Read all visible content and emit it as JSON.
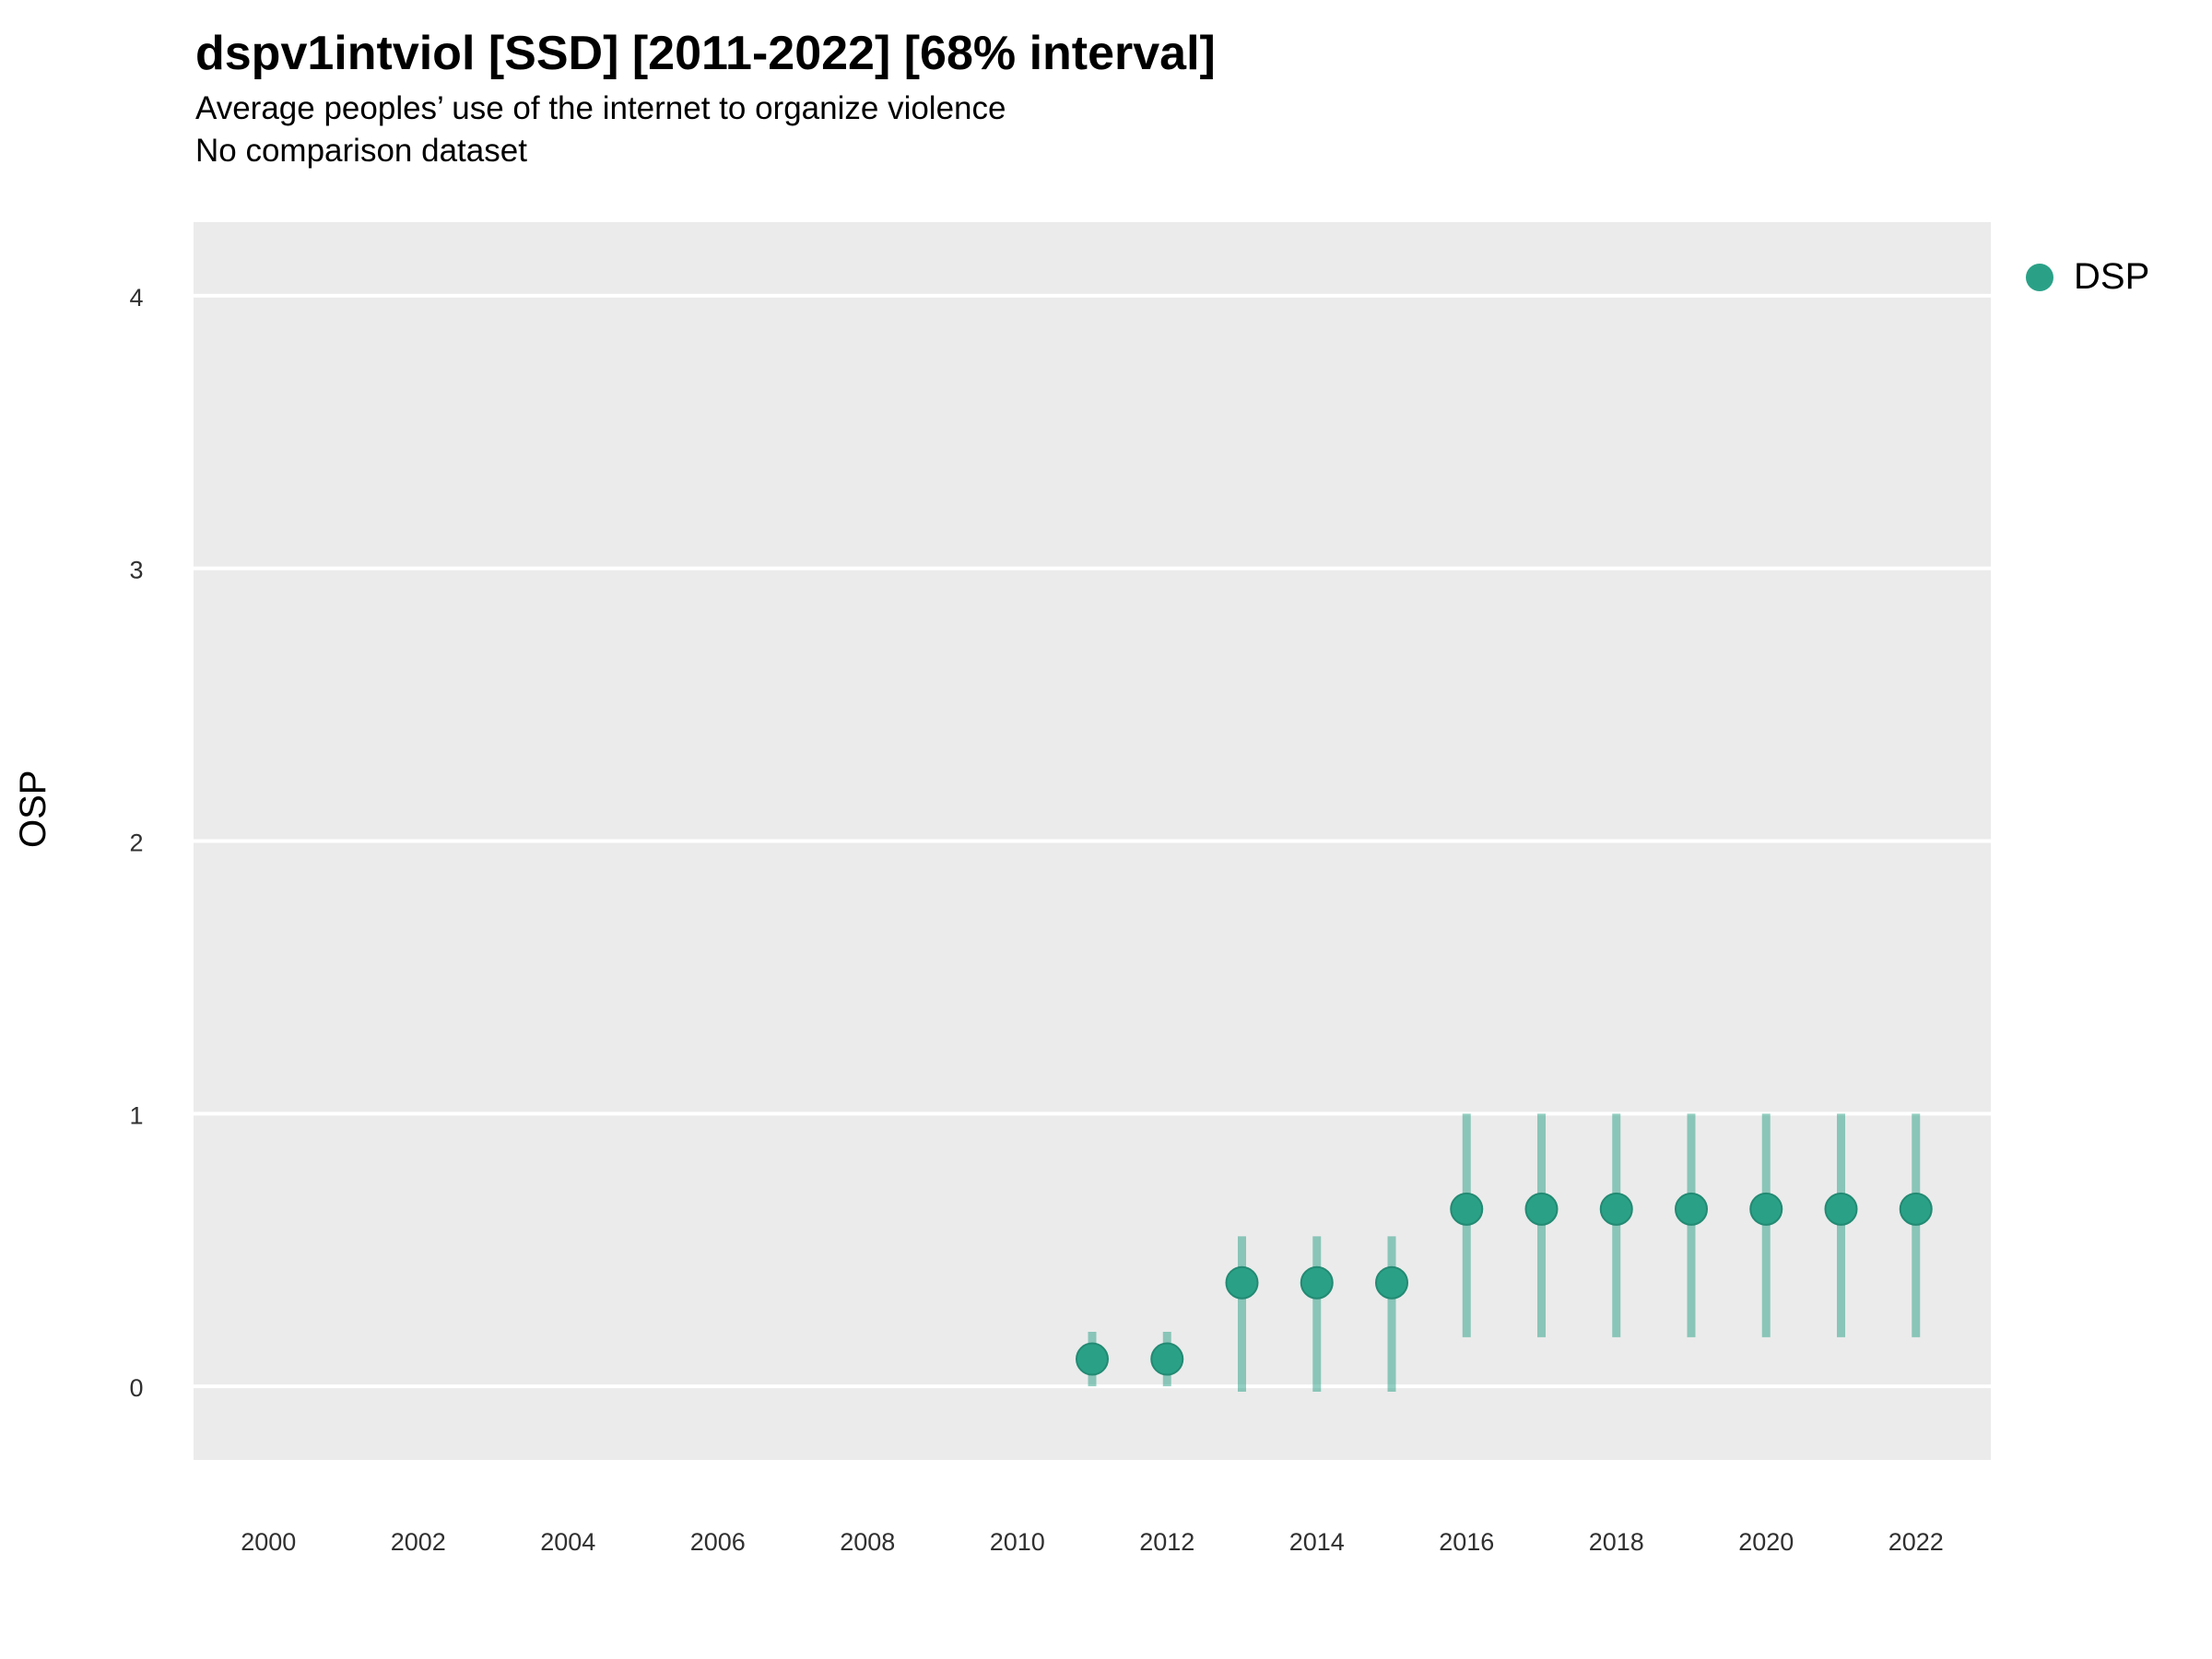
{
  "header": {
    "title": "dspv1intviol [SSD] [2011-2022] [68% interval]",
    "subtitle": "Average peoples’ use of the internet to organize violence",
    "subtitle2": "No comparison dataset"
  },
  "chart_data": {
    "type": "scatter",
    "title": "dspv1intviol [SSD] [2011-2022] [68% interval]",
    "subtitle": "Average peoples’ use of the internet to organize violence",
    "note": "No comparison dataset",
    "xlabel": "",
    "ylabel": "OSP",
    "xlim": [
      1999,
      2023
    ],
    "ylim": [
      -0.27,
      4.27
    ],
    "x_ticks": [
      2000,
      2002,
      2004,
      2006,
      2008,
      2010,
      2012,
      2014,
      2016,
      2018,
      2020,
      2022
    ],
    "y_ticks": [
      0,
      1,
      2,
      3,
      4
    ],
    "grid": "horizontal-major-only",
    "panel_bg": "#ebebeb",
    "grid_color": "#ffffff",
    "tick_label_color": "#303030",
    "legend": {
      "position": "right",
      "entries": [
        {
          "label": "DSP",
          "color": "#2aa187"
        }
      ]
    },
    "series": [
      {
        "name": "DSP",
        "color": "#2aa187",
        "interval_opacity": 0.5,
        "interval_label": "68% interval",
        "x": [
          2011,
          2012,
          2013,
          2014,
          2015,
          2016,
          2017,
          2018,
          2019,
          2020,
          2021,
          2022
        ],
        "y": [
          0.1,
          0.1,
          0.38,
          0.38,
          0.38,
          0.65,
          0.65,
          0.65,
          0.65,
          0.65,
          0.65,
          0.65
        ],
        "y_low": [
          0.0,
          0.0,
          -0.02,
          -0.02,
          -0.02,
          0.18,
          0.18,
          0.18,
          0.18,
          0.18,
          0.18,
          0.18
        ],
        "y_high": [
          0.2,
          0.2,
          0.55,
          0.55,
          0.55,
          1.0,
          1.0,
          1.0,
          1.0,
          1.0,
          1.0,
          1.0
        ]
      }
    ]
  }
}
